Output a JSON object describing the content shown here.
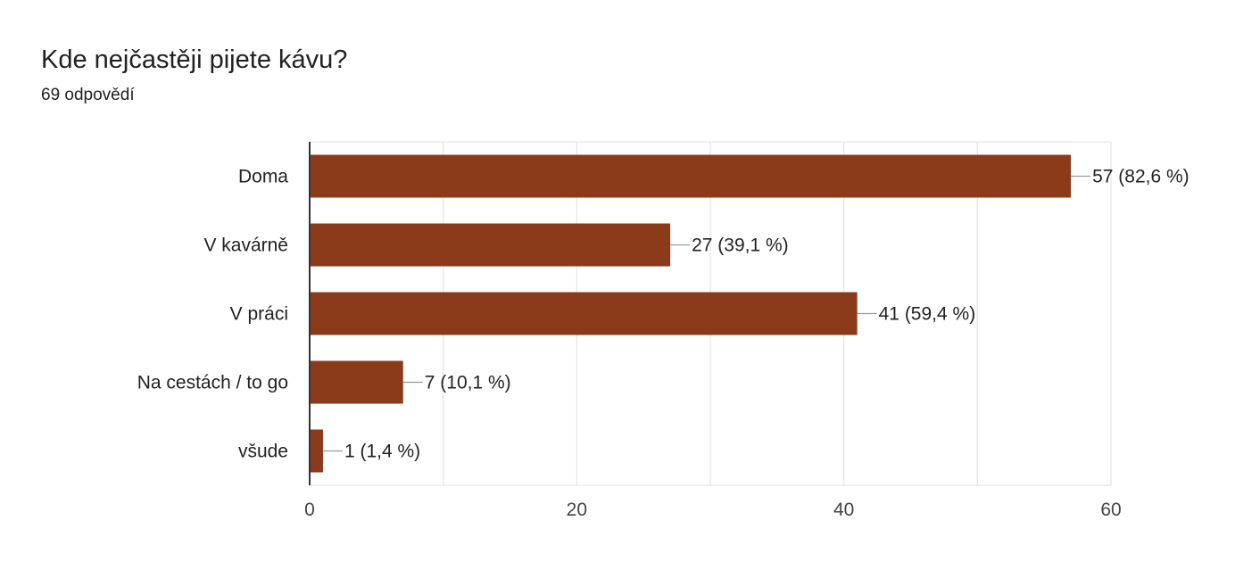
{
  "header": {
    "title": "Kde nejčastěji pijete kávu?",
    "responses": "69 odpovědí"
  },
  "colors": {
    "bar": "#8b3a1a",
    "grid": "#e6e6e6",
    "axis": "#333333",
    "leader": "#999999"
  },
  "chart_data": {
    "type": "bar",
    "orientation": "horizontal",
    "title": "Kde nejčastěji pijete kávu?",
    "subtitle": "69 odpovědí",
    "categories": [
      "Doma",
      "V kavárně",
      "V práci",
      "Na cestách / to go",
      "všude"
    ],
    "values": [
      57,
      27,
      41,
      7,
      1
    ],
    "data_labels": [
      "57 (82,6 %)",
      "27 (39,1 %)",
      "41 (59,4 %)",
      "7 (10,1 %)",
      "1 (1,4 %)"
    ],
    "xlim": [
      0,
      60
    ],
    "xticks": [
      0,
      20,
      40,
      60
    ],
    "xlabel": "",
    "ylabel": "",
    "grid": true,
    "legend": "none"
  }
}
